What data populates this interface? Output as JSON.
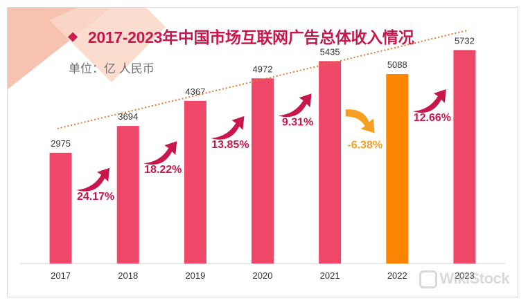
{
  "title": "2017-2023年中国市场互联网广告总体收入情况",
  "title_bullet": "❖",
  "unit": "单位：亿 人民币",
  "watermark": "WikiStock",
  "colors": {
    "bar": "#ee4768",
    "highlight_bar": "#fb8500",
    "trend": "#e8762b",
    "growth_up": "#c8174c",
    "growth_down": "#f5a020",
    "title": "#c8174c"
  },
  "chart_data": {
    "type": "bar",
    "title": "2017-2023年中国市场互联网广告总体收入情况",
    "ylabel": "单位：亿 人民币",
    "categories": [
      "2017",
      "2018",
      "2019",
      "2020",
      "2021",
      "2022",
      "2023"
    ],
    "values": [
      2975,
      3694,
      4367,
      4972,
      5435,
      5088,
      5732
    ],
    "value_labels": [
      "2975",
      "3694",
      "4367",
      "4972",
      "5435",
      "5088",
      "5732"
    ],
    "highlight_index": 5,
    "growth_rates": [
      {
        "label": "24.17%",
        "direction": "up"
      },
      {
        "label": "18.22%",
        "direction": "up"
      },
      {
        "label": "13.85%",
        "direction": "up"
      },
      {
        "label": "9.31%",
        "direction": "up"
      },
      {
        "label": "-6.38%",
        "direction": "down"
      },
      {
        "label": "12.66%",
        "direction": "up"
      }
    ],
    "trendline": true,
    "ylim": [
      0,
      6500
    ],
    "grid": false
  }
}
